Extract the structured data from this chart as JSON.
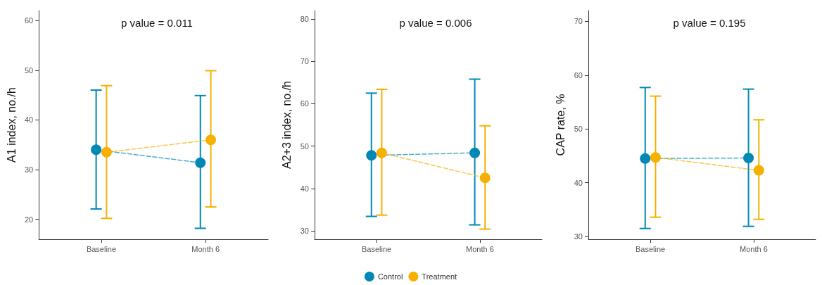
{
  "chart_data": [
    {
      "type": "line",
      "title": "p value = 0.011",
      "ylabel": "A1 index, no./h",
      "categories": [
        "Baseline",
        "Month 6"
      ],
      "ylim": [
        16,
        62
      ],
      "yticks": [
        20,
        30,
        40,
        50,
        60
      ],
      "grid": false,
      "legend": false,
      "marker": "circle",
      "line_style": "dashed",
      "series": [
        {
          "color": "#0088b5",
          "values": [
            34.0,
            31.4
          ],
          "errors": [
            [
              22.1,
              46.0
            ],
            [
              18.2,
              44.9
            ]
          ]
        },
        {
          "color": "#f5b000",
          "values": [
            33.5,
            36.0
          ],
          "errors": [
            [
              20.2,
              46.9
            ],
            [
              22.5,
              49.9
            ]
          ]
        }
      ]
    },
    {
      "type": "line",
      "title": "p value = 0.006",
      "ylabel": "A2+3 index, no./h",
      "categories": [
        "Baseline",
        "Month 6"
      ],
      "ylim": [
        28,
        82
      ],
      "yticks": [
        30,
        40,
        50,
        60,
        70,
        80
      ],
      "grid": false,
      "legend": "bottom",
      "marker": "circle",
      "line_style": "dashed",
      "series": [
        {
          "name": "Control",
          "color": "#0088b5",
          "values": [
            47.8,
            48.4
          ],
          "errors": [
            [
              33.4,
              62.5
            ],
            [
              31.4,
              65.8
            ]
          ]
        },
        {
          "name": "Treatment",
          "color": "#f5b000",
          "values": [
            48.4,
            42.5
          ],
          "errors": [
            [
              33.7,
              63.4
            ],
            [
              30.4,
              54.8
            ]
          ]
        }
      ]
    },
    {
      "type": "line",
      "title": "p value = 0.195",
      "ylabel": "CAP rate, %",
      "categories": [
        "Baseline",
        "Month 6"
      ],
      "ylim": [
        29.5,
        72
      ],
      "yticks": [
        30,
        40,
        50,
        60,
        70
      ],
      "grid": false,
      "legend": false,
      "marker": "circle",
      "line_style": "dashed",
      "series": [
        {
          "color": "#0088b5",
          "values": [
            44.5,
            44.6
          ],
          "errors": [
            [
              31.5,
              57.7
            ],
            [
              31.9,
              57.4
            ]
          ]
        },
        {
          "color": "#f5b000",
          "values": [
            44.7,
            42.3
          ],
          "errors": [
            [
              33.6,
              56.1
            ],
            [
              33.2,
              51.7
            ]
          ]
        }
      ]
    }
  ]
}
